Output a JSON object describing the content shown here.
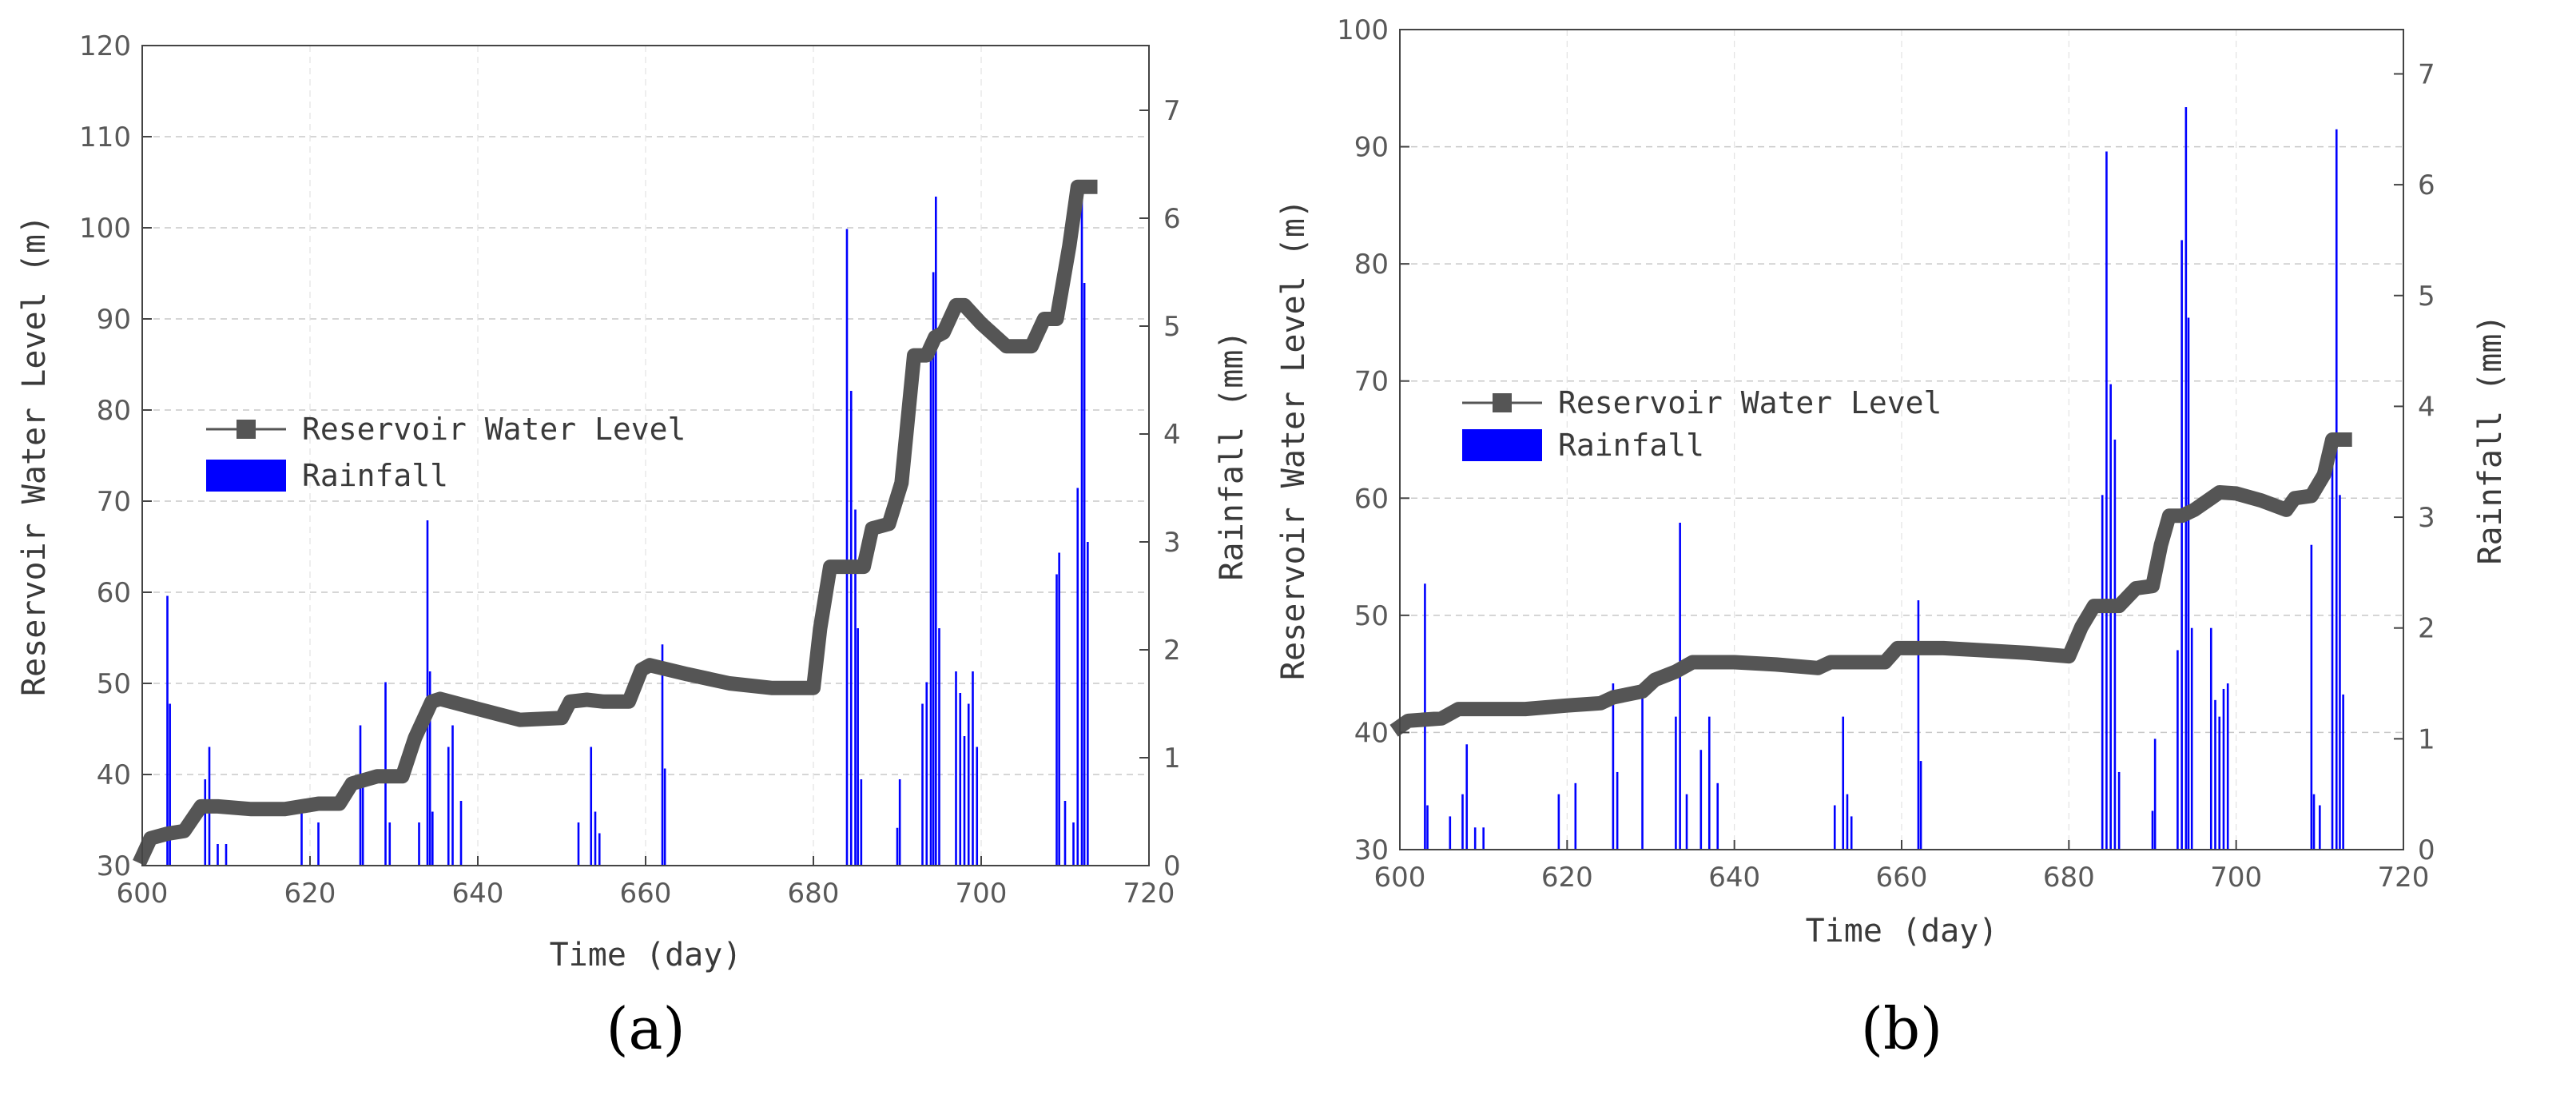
{
  "chart_data": [
    {
      "type": "line+bar",
      "panel_label": "(a)",
      "xlabel": "Time (day)",
      "ylabel_left": "Reservoir Water Level (m)",
      "ylabel_right": "Rainfall (mm)",
      "xlim": [
        600,
        720
      ],
      "ylim_left": [
        30,
        120
      ],
      "ylim_right": [
        0,
        7.6
      ],
      "xticks": [
        600,
        620,
        640,
        660,
        680,
        700,
        720
      ],
      "yticks_left": [
        30,
        40,
        50,
        60,
        70,
        80,
        90,
        100,
        110,
        120
      ],
      "yticks_right": [
        0,
        1,
        2,
        3,
        4,
        5,
        6,
        7
      ],
      "gridlines": true,
      "legend": {
        "position": "middle-left",
        "entries": [
          "Reservoir Water Level",
          "Rainfall"
        ]
      },
      "series": [
        {
          "name": "Reservoir Water Level",
          "kind": "line",
          "color": "#555555",
          "x": [
            600,
            601,
            603,
            605,
            607,
            609,
            613,
            617,
            621,
            623.5,
            625,
            628,
            631,
            632.5,
            634.5,
            635.5,
            640,
            645,
            650,
            651,
            653,
            655,
            658,
            659.5,
            660.5,
            665,
            670,
            675,
            680,
            680.8,
            682,
            684,
            686,
            687,
            689,
            690.5,
            692,
            693.5,
            694.5,
            695.5,
            697,
            698,
            700,
            703,
            706,
            707.5,
            709,
            710.5,
            711.5,
            712,
            713
          ],
          "y": [
            31,
            33,
            33.5,
            33.8,
            36.5,
            36.5,
            36.2,
            36.2,
            36.8,
            36.8,
            39,
            39.8,
            39.8,
            44,
            48,
            48.3,
            47.2,
            46,
            46.2,
            48,
            48.2,
            48,
            48,
            51.5,
            52,
            51,
            50,
            49.5,
            49.5,
            56,
            62.8,
            62.8,
            62.8,
            67,
            67.5,
            72,
            86,
            86,
            88,
            88.5,
            91.5,
            91.5,
            89.5,
            87,
            87,
            90,
            90,
            98,
            104.5,
            104.5,
            104.5
          ]
        },
        {
          "name": "Rainfall",
          "kind": "bar",
          "color": "#0000ff",
          "x": [
            603,
            603.3,
            607.5,
            608,
            609,
            610,
            619,
            621,
            626,
            626.3,
            629,
            629.5,
            633,
            634,
            634.3,
            634.6,
            636.5,
            637,
            638,
            652,
            653.5,
            654,
            654.5,
            662,
            662.3,
            684,
            684.5,
            685,
            685.3,
            685.7,
            690,
            690.3,
            693,
            693.5,
            694,
            694.3,
            694.6,
            695,
            697,
            697.5,
            698,
            698.5,
            699,
            699.5,
            709,
            709.3,
            710,
            711,
            711.5,
            712,
            712.3,
            712.7
          ],
          "y": [
            2.5,
            1.5,
            0.8,
            1.1,
            0.2,
            0.2,
            0.5,
            0.4,
            1.3,
            0.8,
            1.7,
            0.4,
            0.4,
            3.2,
            1.8,
            0.5,
            1.1,
            1.3,
            0.6,
            0.4,
            1.1,
            0.5,
            0.3,
            2.05,
            0.9,
            5.9,
            4.4,
            3.3,
            2.2,
            0.8,
            0.35,
            0.8,
            1.5,
            1.7,
            4.8,
            5.5,
            6.2,
            2.2,
            1.8,
            1.6,
            1.2,
            1.5,
            1.8,
            1.1,
            2.7,
            2.9,
            0.6,
            0.4,
            3.5,
            6.2,
            5.4,
            3.0
          ]
        }
      ]
    },
    {
      "type": "line+bar",
      "panel_label": "(b)",
      "xlabel": "Time (day)",
      "ylabel_left": "Reservoir Water Level (m)",
      "ylabel_right": "Rainfall (mm)",
      "xlim": [
        600,
        720
      ],
      "ylim_left": [
        30,
        100
      ],
      "ylim_right": [
        0,
        7.4
      ],
      "xticks": [
        600,
        620,
        640,
        660,
        680,
        700,
        720
      ],
      "yticks_left": [
        30,
        40,
        50,
        60,
        70,
        80,
        90,
        100
      ],
      "yticks_right": [
        0,
        1,
        2,
        3,
        4,
        5,
        6,
        7
      ],
      "gridlines": true,
      "legend": {
        "position": "middle-left",
        "entries": [
          "Reservoir Water Level",
          "Rainfall"
        ]
      },
      "series": [
        {
          "name": "Reservoir Water Level",
          "kind": "line",
          "color": "#555555",
          "x": [
            600,
            601,
            605,
            607,
            610,
            615,
            620,
            624,
            625.5,
            629,
            630.5,
            633,
            635,
            640,
            645,
            650,
            651.5,
            655,
            658,
            659.5,
            665,
            670,
            675,
            680,
            681.5,
            683,
            686,
            688,
            690,
            691,
            692,
            693.5,
            695,
            697,
            698,
            700,
            703,
            706,
            707,
            709,
            710.5,
            711.5,
            713
          ],
          "y": [
            40.5,
            41,
            41.2,
            42,
            42,
            42,
            42.3,
            42.5,
            43,
            43.5,
            44.5,
            45.2,
            46,
            46,
            45.8,
            45.5,
            46,
            46,
            46,
            47.2,
            47.2,
            47,
            46.8,
            46.5,
            49,
            50.8,
            50.8,
            52.3,
            52.5,
            56,
            58.5,
            58.5,
            59,
            60,
            60.5,
            60.4,
            59.8,
            59,
            60,
            60.2,
            62,
            65,
            65
          ]
        },
        {
          "name": "Rainfall",
          "kind": "bar",
          "color": "#0000ff",
          "x": [
            603,
            603.3,
            606,
            607.5,
            608,
            609,
            610,
            619,
            621,
            625.5,
            626,
            629,
            633,
            633.5,
            634.3,
            636,
            637,
            638,
            652,
            653,
            653.5,
            654,
            662,
            662.3,
            684,
            684.5,
            685,
            685.5,
            686,
            690,
            690.3,
            693,
            693.5,
            694,
            694.3,
            694.7,
            697,
            697.5,
            698,
            698.5,
            699,
            709,
            709.3,
            710,
            711.5,
            712,
            712.4,
            712.8
          ],
          "y": [
            2.4,
            0.4,
            0.3,
            0.5,
            0.95,
            0.2,
            0.2,
            0.5,
            0.6,
            1.5,
            0.7,
            1.4,
            1.2,
            2.95,
            0.5,
            0.9,
            1.2,
            0.6,
            0.4,
            1.2,
            0.5,
            0.3,
            2.25,
            0.8,
            3.2,
            6.3,
            4.2,
            3.7,
            0.7,
            0.35,
            1.0,
            1.8,
            5.5,
            6.7,
            4.8,
            2.0,
            2.0,
            1.35,
            1.2,
            1.45,
            1.5,
            2.75,
            0.5,
            0.4,
            3.6,
            6.5,
            3.2,
            1.4
          ]
        }
      ]
    }
  ]
}
